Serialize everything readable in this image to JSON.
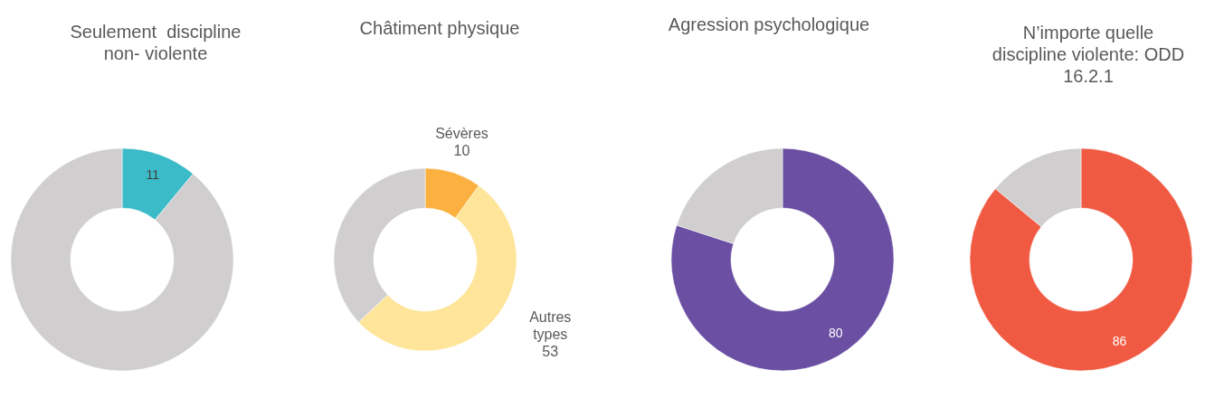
{
  "chart_data": [
    {
      "type": "donut",
      "title": "Seulement  discipline\nnon- violente",
      "categories": [
        null,
        null
      ],
      "values": [
        11,
        89
      ],
      "colors": [
        "#3bbac8",
        "#d0cecf"
      ],
      "value_labels": [
        "11",
        null
      ]
    },
    {
      "type": "donut",
      "title": "Châtiment physique",
      "categories": [
        "Sévères",
        "Autres types",
        null
      ],
      "values": [
        10,
        53,
        37
      ],
      "colors": [
        "#fbb040",
        "#fee599",
        "#d0cecf"
      ],
      "value_labels": [
        "10",
        "53",
        null
      ]
    },
    {
      "type": "donut",
      "title": "Agression psychologique",
      "categories": [
        null,
        null
      ],
      "values": [
        80,
        20
      ],
      "colors": [
        "#6a4fa3",
        "#d0cecf"
      ],
      "value_labels": [
        "80",
        null
      ]
    },
    {
      "type": "donut",
      "title": "N’importe quelle\ndiscipline violente: ODD\n16.2.1",
      "categories": [
        null,
        null
      ],
      "values": [
        86,
        14
      ],
      "colors": [
        "#f05a42",
        "#d0cecf"
      ],
      "value_labels": [
        "86",
        null
      ]
    }
  ]
}
